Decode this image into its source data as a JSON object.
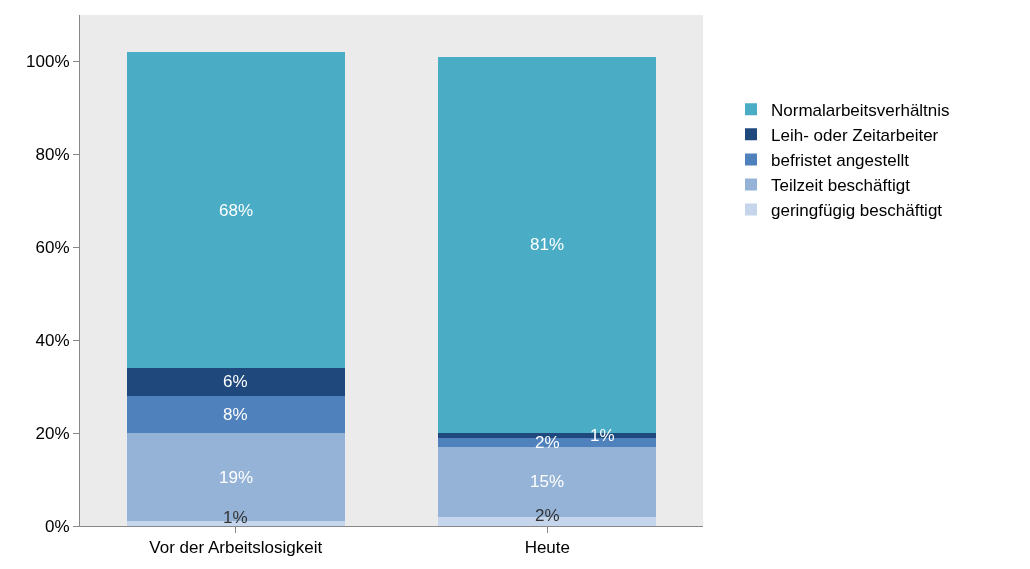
{
  "chart_data": {
    "type": "bar",
    "stacked": true,
    "categories": [
      "Vor der Arbeitslosigkeit",
      "Heute"
    ],
    "series": [
      {
        "name": "geringfügig beschäftigt",
        "color": "#c5d6ec",
        "values": [
          1,
          2
        ],
        "value_labels": [
          "1%",
          "2%"
        ]
      },
      {
        "name": "Teilzeit beschäftigt",
        "color": "#95b3d7",
        "values": [
          19,
          15
        ],
        "value_labels": [
          "19%",
          "15%"
        ]
      },
      {
        "name": "befristet angestellt",
        "color": "#4f81bd",
        "values": [
          8,
          2
        ],
        "value_labels": [
          "8%",
          "2%"
        ]
      },
      {
        "name": "Leih- oder Zeitarbeiter",
        "color": "#1f497d",
        "values": [
          6,
          1
        ],
        "value_labels": [
          "6%",
          "1%"
        ]
      },
      {
        "name": "Normalarbeitsverhältnis",
        "color": "#4bacc6",
        "values": [
          68,
          81
        ],
        "value_labels": [
          "68%",
          "81%"
        ]
      }
    ],
    "ylim": [
      0,
      110
    ],
    "yticks": [
      {
        "value": 0,
        "label": "0%"
      },
      {
        "value": 20,
        "label": "20%"
      },
      {
        "value": 40,
        "label": "40%"
      },
      {
        "value": 60,
        "label": "60%"
      },
      {
        "value": 80,
        "label": "80%"
      },
      {
        "value": 100,
        "label": "100%"
      }
    ],
    "grid": false,
    "legend": "right"
  }
}
